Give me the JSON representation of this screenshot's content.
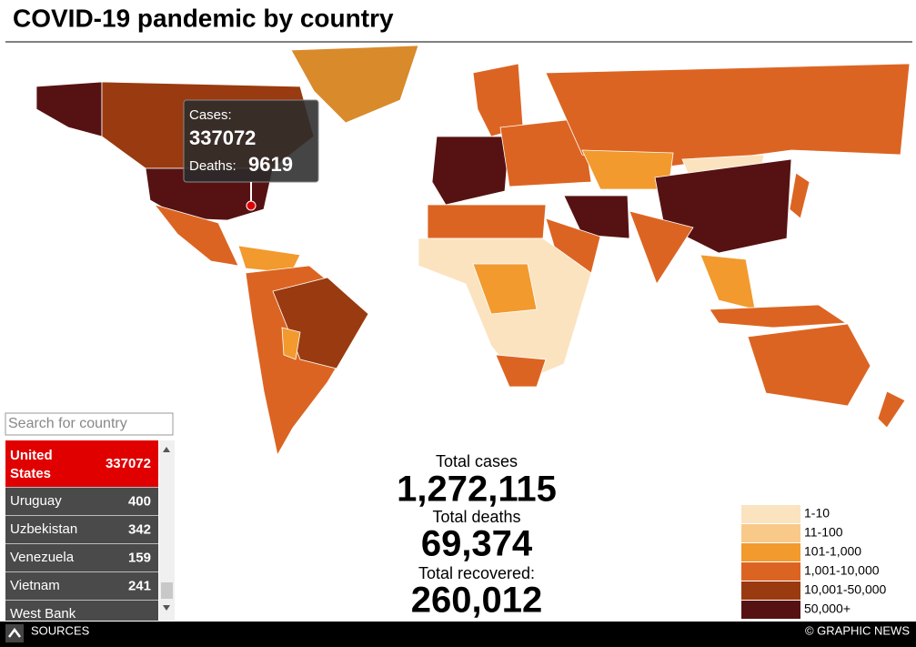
{
  "header": {
    "title": "COVID-19 pandemic by country"
  },
  "tooltip": {
    "cases_label": "Cases:",
    "cases": "337072",
    "deaths_label": "Deaths:",
    "deaths": "9619"
  },
  "search": {
    "placeholder": "Search for country"
  },
  "country_list": [
    {
      "name": "United States",
      "cases": "337072",
      "selected": true
    },
    {
      "name": "Uruguay",
      "cases": "400"
    },
    {
      "name": "Uzbekistan",
      "cases": "342"
    },
    {
      "name": "Venezuela",
      "cases": "159"
    },
    {
      "name": "Vietnam",
      "cases": "241"
    },
    {
      "name": "West Bank"
    }
  ],
  "totals": [
    {
      "label": "Total cases",
      "value": "1,272,115"
    },
    {
      "label": "Total deaths",
      "value": "69,374"
    },
    {
      "label": "Total recovered:",
      "value": "260,012"
    }
  ],
  "legend": [
    {
      "label": "1-10",
      "color": "#fbe3c0"
    },
    {
      "label": "11-100",
      "color": "#f9c98a"
    },
    {
      "label": "101-1,000",
      "color": "#f29a2e"
    },
    {
      "label": "1,001-10,000",
      "color": "#dc6422"
    },
    {
      "label": "10,001-50,000",
      "color": "#9a3a10"
    },
    {
      "label": "50,000+",
      "color": "#561212"
    }
  ],
  "footer": {
    "sources": "SOURCES",
    "credit": "© GRAPHIC NEWS"
  }
}
